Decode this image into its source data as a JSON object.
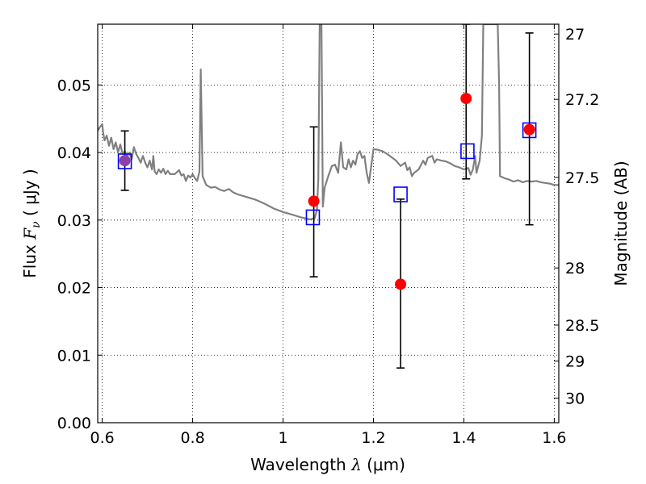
{
  "chart_data": {
    "type": "scatter",
    "title": "",
    "xlabel": {
      "prefix": "Wavelength  ",
      "symbol": "λ",
      "unit": " (μm)"
    },
    "ylabel": {
      "prefix": "Flux  ",
      "symbol": "F",
      "subscript": "ν",
      "unit": "  ( μJy )"
    },
    "y2label": "Magnitude (AB)",
    "xlim": [
      0.59,
      1.61
    ],
    "ylim": [
      0.0,
      0.059
    ],
    "grid": true,
    "x_ticks": [
      {
        "value": 0.6,
        "label": "0.6"
      },
      {
        "value": 0.8,
        "label": "0.8"
      },
      {
        "value": 1.0,
        "label": "1"
      },
      {
        "value": 1.2,
        "label": "1.2"
      },
      {
        "value": 1.4,
        "label": "1.4"
      },
      {
        "value": 1.6,
        "label": "1.6"
      }
    ],
    "y_ticks": [
      {
        "value": 0.0,
        "label": "0.00"
      },
      {
        "value": 0.01,
        "label": "0.01"
      },
      {
        "value": 0.02,
        "label": "0.02"
      },
      {
        "value": 0.03,
        "label": "0.03"
      },
      {
        "value": 0.04,
        "label": "0.04"
      },
      {
        "value": 0.05,
        "label": "0.05"
      }
    ],
    "y2_ticks": [
      {
        "mag": 27,
        "label": "27"
      },
      {
        "mag": 27.2,
        "label": "27.2"
      },
      {
        "mag": 27.5,
        "label": "27.5"
      },
      {
        "mag": 28,
        "label": "28"
      },
      {
        "mag": 28.5,
        "label": "28.5"
      },
      {
        "mag": 29,
        "label": "29"
      },
      {
        "mag": 30,
        "label": "30"
      }
    ],
    "model_spectrum": {
      "color": "#808080",
      "points": [
        [
          0.59,
          0.0432
        ],
        [
          0.595,
          0.0438
        ],
        [
          0.6,
          0.0442
        ],
        [
          0.602,
          0.043
        ],
        [
          0.605,
          0.0418
        ],
        [
          0.61,
          0.0425
        ],
        [
          0.615,
          0.041
        ],
        [
          0.62,
          0.0422
        ],
        [
          0.625,
          0.0405
        ],
        [
          0.63,
          0.0415
        ],
        [
          0.635,
          0.04
        ],
        [
          0.64,
          0.0412
        ],
        [
          0.645,
          0.0398
        ],
        [
          0.65,
          0.0402
        ],
        [
          0.655,
          0.0395
        ],
        [
          0.66,
          0.04
        ],
        [
          0.665,
          0.039
        ],
        [
          0.67,
          0.0408
        ],
        [
          0.675,
          0.0398
        ],
        [
          0.68,
          0.0392
        ],
        [
          0.685,
          0.0385
        ],
        [
          0.69,
          0.0395
        ],
        [
          0.695,
          0.0385
        ],
        [
          0.7,
          0.0378
        ],
        [
          0.705,
          0.0388
        ],
        [
          0.71,
          0.0375
        ],
        [
          0.713,
          0.0395
        ],
        [
          0.716,
          0.0372
        ],
        [
          0.72,
          0.0368
        ],
        [
          0.725,
          0.0375
        ],
        [
          0.73,
          0.037
        ],
        [
          0.735,
          0.0376
        ],
        [
          0.74,
          0.0368
        ],
        [
          0.745,
          0.0373
        ],
        [
          0.75,
          0.0368
        ],
        [
          0.76,
          0.0368
        ],
        [
          0.77,
          0.0374
        ],
        [
          0.775,
          0.0366
        ],
        [
          0.78,
          0.0368
        ],
        [
          0.785,
          0.0358
        ],
        [
          0.79,
          0.0366
        ],
        [
          0.795,
          0.0363
        ],
        [
          0.8,
          0.0368
        ],
        [
          0.805,
          0.0362
        ],
        [
          0.81,
          0.0358
        ],
        [
          0.815,
          0.0372
        ],
        [
          0.818,
          0.0523
        ],
        [
          0.822,
          0.0365
        ],
        [
          0.83,
          0.0352
        ],
        [
          0.84,
          0.0348
        ],
        [
          0.85,
          0.0349
        ],
        [
          0.86,
          0.0345
        ],
        [
          0.87,
          0.0343
        ],
        [
          0.88,
          0.0346
        ],
        [
          0.89,
          0.0341
        ],
        [
          0.9,
          0.0338
        ],
        [
          0.92,
          0.0334
        ],
        [
          0.94,
          0.033
        ],
        [
          0.96,
          0.0324
        ],
        [
          0.98,
          0.0317
        ],
        [
          1.0,
          0.0312
        ],
        [
          1.02,
          0.0308
        ],
        [
          1.04,
          0.0304
        ],
        [
          1.06,
          0.0301
        ],
        [
          1.07,
          0.0303
        ],
        [
          1.075,
          0.0315
        ],
        [
          1.078,
          0.036
        ],
        [
          1.081,
          0.059
        ],
        [
          1.085,
          0.059
        ],
        [
          1.088,
          0.032
        ],
        [
          1.092,
          0.0348
        ],
        [
          1.1,
          0.0365
        ],
        [
          1.108,
          0.038
        ],
        [
          1.115,
          0.0382
        ],
        [
          1.122,
          0.037
        ],
        [
          1.128,
          0.0415
        ],
        [
          1.133,
          0.0378
        ],
        [
          1.14,
          0.0375
        ],
        [
          1.145,
          0.039
        ],
        [
          1.15,
          0.0378
        ],
        [
          1.155,
          0.0388
        ],
        [
          1.16,
          0.0382
        ],
        [
          1.165,
          0.0398
        ],
        [
          1.17,
          0.0402
        ],
        [
          1.175,
          0.0392
        ],
        [
          1.18,
          0.0395
        ],
        [
          1.185,
          0.037
        ],
        [
          1.19,
          0.0355
        ],
        [
          1.195,
          0.038
        ],
        [
          1.2,
          0.0405
        ],
        [
          1.21,
          0.0404
        ],
        [
          1.22,
          0.0402
        ],
        [
          1.23,
          0.0398
        ],
        [
          1.24,
          0.0393
        ],
        [
          1.25,
          0.0388
        ],
        [
          1.26,
          0.038
        ],
        [
          1.27,
          0.0385
        ],
        [
          1.275,
          0.0374
        ],
        [
          1.28,
          0.0378
        ],
        [
          1.285,
          0.0365
        ],
        [
          1.29,
          0.037
        ],
        [
          1.3,
          0.0375
        ],
        [
          1.31,
          0.0388
        ],
        [
          1.315,
          0.0382
        ],
        [
          1.32,
          0.0392
        ],
        [
          1.33,
          0.0395
        ],
        [
          1.335,
          0.0385
        ],
        [
          1.34,
          0.039
        ],
        [
          1.35,
          0.0388
        ],
        [
          1.36,
          0.0387
        ],
        [
          1.37,
          0.0384
        ],
        [
          1.38,
          0.038
        ],
        [
          1.39,
          0.0378
        ],
        [
          1.4,
          0.0375
        ],
        [
          1.41,
          0.0377
        ],
        [
          1.415,
          0.0367
        ],
        [
          1.42,
          0.0375
        ],
        [
          1.425,
          0.0395
        ],
        [
          1.428,
          0.037
        ],
        [
          1.435,
          0.0388
        ],
        [
          1.44,
          0.0425
        ],
        [
          1.443,
          0.059
        ],
        [
          1.448,
          0.059
        ],
        [
          1.452,
          0.059
        ],
        [
          1.456,
          0.059
        ],
        [
          1.46,
          0.059
        ],
        [
          1.465,
          0.059
        ],
        [
          1.47,
          0.059
        ],
        [
          1.475,
          0.059
        ],
        [
          1.478,
          0.05
        ],
        [
          1.48,
          0.0365
        ],
        [
          1.49,
          0.0362
        ],
        [
          1.5,
          0.036
        ],
        [
          1.51,
          0.0357
        ],
        [
          1.52,
          0.0359
        ],
        [
          1.53,
          0.0356
        ],
        [
          1.54,
          0.0358
        ],
        [
          1.55,
          0.0357
        ],
        [
          1.56,
          0.0358
        ],
        [
          1.57,
          0.0356
        ],
        [
          1.58,
          0.0355
        ],
        [
          1.59,
          0.0354
        ],
        [
          1.6,
          0.0352
        ],
        [
          1.61,
          0.0352
        ]
      ]
    },
    "observed": {
      "color": "#ff0000",
      "points": [
        {
          "x": 0.65,
          "y": 0.0388,
          "err_low": 0.0344,
          "err_high": 0.0432
        },
        {
          "x": 1.068,
          "y": 0.0328,
          "err_low": 0.0216,
          "err_high": 0.0438
        },
        {
          "x": 1.26,
          "y": 0.0205,
          "err_low": 0.0081,
          "err_high": 0.0331
        },
        {
          "x": 1.405,
          "y": 0.048,
          "err_low": 0.0361,
          "err_high": 0.059
        },
        {
          "x": 1.545,
          "y": 0.0434,
          "err_low": 0.0293,
          "err_high": 0.0577
        }
      ]
    },
    "model_photometry": {
      "color": "#0000ff",
      "points": [
        {
          "x": 0.65,
          "y": 0.0387
        },
        {
          "x": 1.066,
          "y": 0.0304
        },
        {
          "x": 1.26,
          "y": 0.0338
        },
        {
          "x": 1.408,
          "y": 0.0402
        },
        {
          "x": 1.545,
          "y": 0.0433
        }
      ]
    },
    "overlap_color": "#8b3fa8"
  }
}
